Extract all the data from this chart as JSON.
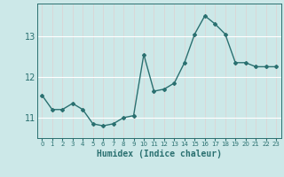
{
  "x": [
    0,
    1,
    2,
    3,
    4,
    5,
    6,
    7,
    8,
    9,
    10,
    11,
    12,
    13,
    14,
    15,
    16,
    17,
    18,
    19,
    20,
    21,
    22,
    23
  ],
  "y": [
    11.55,
    11.2,
    11.2,
    11.35,
    11.2,
    10.85,
    10.8,
    10.85,
    11.0,
    11.05,
    12.55,
    11.65,
    11.7,
    11.85,
    12.35,
    13.05,
    13.5,
    13.3,
    13.05,
    12.35,
    12.35,
    12.25,
    12.25,
    12.25
  ],
  "title": "",
  "xlabel": "Humidex (Indice chaleur)",
  "ylabel": "",
  "xlim": [
    -0.5,
    23.5
  ],
  "ylim": [
    10.5,
    13.8
  ],
  "yticks": [
    11,
    12,
    13
  ],
  "xtick_labels": [
    "0",
    "1",
    "2",
    "3",
    "4",
    "5",
    "6",
    "7",
    "8",
    "9",
    "10",
    "11",
    "12",
    "13",
    "14",
    "15",
    "16",
    "17",
    "18",
    "19",
    "20",
    "21",
    "22",
    "23"
  ],
  "bg_color": "#cce8e8",
  "line_color": "#2a7070",
  "grid_h_color": "#ffffff",
  "grid_v_color": "#e0d0d0",
  "line_width": 1.0,
  "marker": "D",
  "marker_size": 2.0,
  "tick_color": "#2a7070",
  "xlabel_fontsize": 7,
  "ytick_fontsize": 7,
  "xtick_fontsize": 5
}
